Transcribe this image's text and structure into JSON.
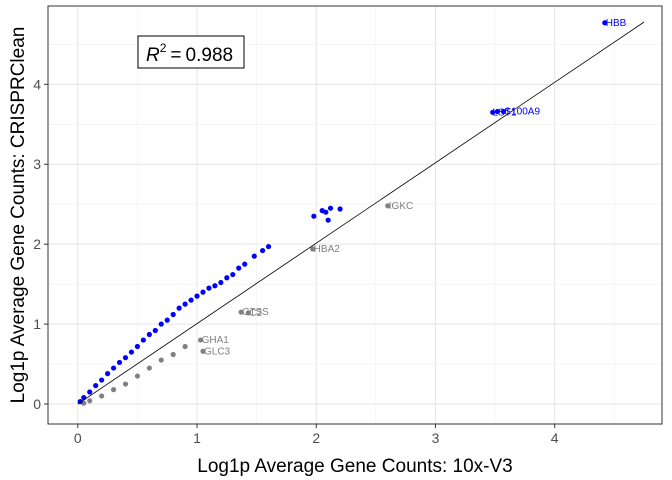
{
  "chart_data": {
    "type": "scatter",
    "xlabel": "Log1p Average Gene Counts: 10x-V3",
    "ylabel": "Log1p Average Gene Counts: CRISPRClean",
    "xlim": [
      -0.25,
      4.9
    ],
    "ylim": [
      -0.25,
      4.98
    ],
    "x_ticks": [
      0,
      1,
      2,
      3,
      4
    ],
    "y_ticks": [
      0,
      1,
      2,
      3,
      4
    ],
    "grid": true,
    "colors": {
      "blue": "#0000ff",
      "grey": "#808080",
      "line": "#000000"
    },
    "annotation": {
      "label": "R",
      "superscript": "2",
      "equals": "=",
      "value": "0.988"
    },
    "fit_line": {
      "x": [
        0,
        4.75
      ],
      "y": [
        0,
        4.78
      ]
    },
    "series": [
      {
        "color": "#0000ff",
        "points": [
          [
            4.42,
            4.77
          ],
          [
            3.48,
            3.65
          ],
          [
            3.52,
            3.66
          ],
          [
            3.57,
            3.66
          ],
          [
            2.05,
            2.42
          ],
          [
            2.12,
            2.45
          ],
          [
            2.2,
            2.44
          ],
          [
            2.08,
            2.4
          ],
          [
            1.98,
            2.35
          ],
          [
            2.1,
            2.3
          ],
          [
            1.6,
            1.97
          ],
          [
            1.55,
            1.92
          ],
          [
            1.48,
            1.85
          ],
          [
            1.4,
            1.75
          ],
          [
            1.35,
            1.7
          ],
          [
            1.3,
            1.62
          ],
          [
            1.25,
            1.58
          ],
          [
            1.2,
            1.52
          ],
          [
            1.15,
            1.48
          ],
          [
            1.1,
            1.45
          ],
          [
            1.05,
            1.4
          ],
          [
            1.0,
            1.35
          ],
          [
            0.95,
            1.3
          ],
          [
            0.9,
            1.25
          ],
          [
            0.85,
            1.2
          ],
          [
            0.8,
            1.12
          ],
          [
            0.75,
            1.05
          ],
          [
            0.7,
            1.0
          ],
          [
            0.65,
            0.92
          ],
          [
            0.6,
            0.87
          ],
          [
            0.55,
            0.8
          ],
          [
            0.5,
            0.72
          ],
          [
            0.45,
            0.65
          ],
          [
            0.4,
            0.58
          ],
          [
            0.35,
            0.52
          ],
          [
            0.3,
            0.45
          ],
          [
            0.25,
            0.38
          ],
          [
            0.2,
            0.3
          ],
          [
            0.15,
            0.23
          ],
          [
            0.1,
            0.15
          ],
          [
            0.05,
            0.08
          ],
          [
            0.02,
            0.03
          ]
        ]
      },
      {
        "color": "#808080",
        "points": [
          [
            2.6,
            2.48
          ],
          [
            1.97,
            1.94
          ],
          [
            1.37,
            1.15
          ],
          [
            1.43,
            1.14
          ],
          [
            1.03,
            0.8
          ],
          [
            1.05,
            0.66
          ],
          [
            0.9,
            0.72
          ],
          [
            0.8,
            0.62
          ],
          [
            0.7,
            0.55
          ],
          [
            0.6,
            0.45
          ],
          [
            0.5,
            0.35
          ],
          [
            0.4,
            0.25
          ],
          [
            0.3,
            0.18
          ],
          [
            0.2,
            0.1
          ],
          [
            0.1,
            0.04
          ],
          [
            0.05,
            0.01
          ]
        ]
      }
    ],
    "labels": [
      {
        "text": "HBB",
        "x": 4.42,
        "y": 4.77,
        "color": "#0000ff"
      },
      {
        "text": "LST1",
        "x": 3.47,
        "y": 3.65,
        "color": "#0000ff"
      },
      {
        "text": "S100A9",
        "x": 3.57,
        "y": 3.66,
        "color": "#0000ff"
      },
      {
        "text": "IGKC",
        "x": 2.6,
        "y": 2.48,
        "color": "#808080"
      },
      {
        "text": "HBA2",
        "x": 1.97,
        "y": 1.94,
        "color": "#808080"
      },
      {
        "text": "CTSS",
        "x": 1.37,
        "y": 1.15,
        "color": "#808080"
      },
      {
        "text": "C2",
        "x": 1.43,
        "y": 1.14,
        "color": "#808080"
      },
      {
        "text": "GHA1",
        "x": 1.03,
        "y": 0.8,
        "color": "#808080"
      },
      {
        "text": "GLC3",
        "x": 1.05,
        "y": 0.66,
        "color": "#808080"
      }
    ]
  }
}
